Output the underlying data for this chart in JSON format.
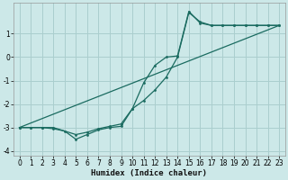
{
  "title": "",
  "xlabel": "Humidex (Indice chaleur)",
  "xlim": [
    -0.5,
    23.5
  ],
  "ylim": [
    -4.2,
    2.3
  ],
  "bg_color": "#cce8e8",
  "grid_color": "#aacece",
  "line_color": "#1a6b60",
  "line1_x": [
    0,
    1,
    2,
    3,
    4,
    5,
    6,
    7,
    8,
    9,
    10,
    11,
    12,
    13,
    14,
    15,
    16,
    17,
    18,
    19,
    20,
    21,
    22,
    23
  ],
  "line1_y": [
    -3.0,
    -3.0,
    -3.0,
    -3.05,
    -3.15,
    -3.5,
    -3.3,
    -3.1,
    -3.0,
    -2.95,
    -2.2,
    -1.85,
    -1.4,
    -0.85,
    0.0,
    1.9,
    1.5,
    1.35,
    1.35,
    1.35,
    1.35,
    1.35,
    1.35,
    1.35
  ],
  "line2_x": [
    0,
    23
  ],
  "line2_y": [
    -3.0,
    1.35
  ],
  "line3_x": [
    0,
    1,
    2,
    3,
    5,
    6,
    7,
    8,
    9,
    10,
    11,
    12,
    13,
    14,
    15,
    16,
    17,
    18,
    19,
    20,
    21,
    22,
    23
  ],
  "line3_y": [
    -3.0,
    -3.0,
    -3.0,
    -3.0,
    -3.3,
    -3.2,
    -3.05,
    -2.95,
    -2.85,
    -2.2,
    -1.1,
    -0.35,
    0.0,
    0.05,
    1.95,
    1.45,
    1.35,
    1.35,
    1.35,
    1.35,
    1.35,
    1.35,
    1.35
  ],
  "yticks": [
    -4,
    -3,
    -2,
    -1,
    0,
    1
  ],
  "xticks": [
    0,
    1,
    2,
    3,
    4,
    5,
    6,
    7,
    8,
    9,
    10,
    11,
    12,
    13,
    14,
    15,
    16,
    17,
    18,
    19,
    20,
    21,
    22,
    23
  ],
  "xlabel_fontsize": 6.5,
  "tick_fontsize": 5.5
}
